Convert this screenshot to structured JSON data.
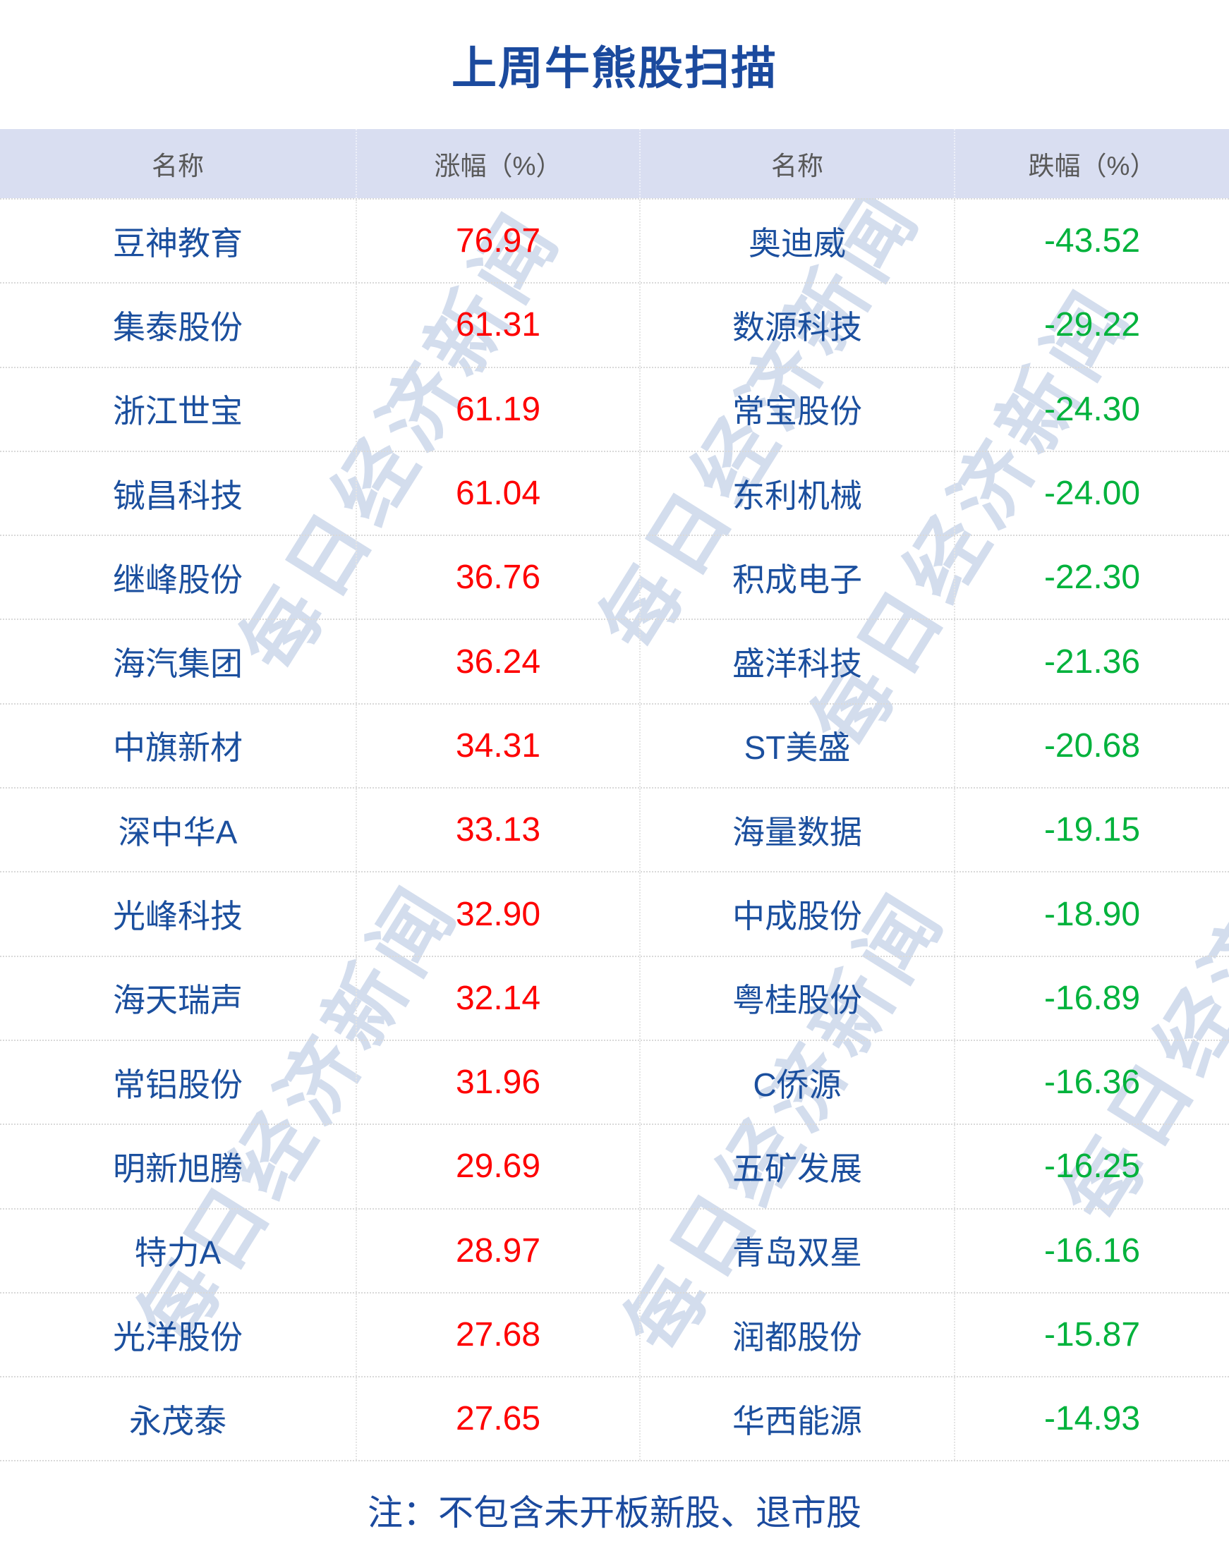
{
  "chart_data": {
    "type": "table",
    "title": "上周牛熊股扫描",
    "columns": [
      "名称",
      "涨幅（%）",
      "名称",
      "跌幅（%）"
    ],
    "rows": [
      {
        "gainer": "豆神教育",
        "gain_pct": "76.97",
        "loser": "奥迪威",
        "loss_pct": "-43.52"
      },
      {
        "gainer": "集泰股份",
        "gain_pct": "61.31",
        "loser": "数源科技",
        "loss_pct": "-29.22"
      },
      {
        "gainer": "浙江世宝",
        "gain_pct": "61.19",
        "loser": "常宝股份",
        "loss_pct": "-24.30"
      },
      {
        "gainer": "铖昌科技",
        "gain_pct": "61.04",
        "loser": "东利机械",
        "loss_pct": "-24.00"
      },
      {
        "gainer": "继峰股份",
        "gain_pct": "36.76",
        "loser": "积成电子",
        "loss_pct": "-22.30"
      },
      {
        "gainer": "海汽集团",
        "gain_pct": "36.24",
        "loser": "盛洋科技",
        "loss_pct": "-21.36"
      },
      {
        "gainer": "中旗新材",
        "gain_pct": "34.31",
        "loser": "ST美盛",
        "loss_pct": "-20.68"
      },
      {
        "gainer": "深中华A",
        "gain_pct": "33.13",
        "loser": "海量数据",
        "loss_pct": "-19.15"
      },
      {
        "gainer": "光峰科技",
        "gain_pct": "32.90",
        "loser": "中成股份",
        "loss_pct": "-18.90"
      },
      {
        "gainer": "海天瑞声",
        "gain_pct": "32.14",
        "loser": "粤桂股份",
        "loss_pct": "-16.89"
      },
      {
        "gainer": "常铝股份",
        "gain_pct": "31.96",
        "loser": "C侨源",
        "loss_pct": "-16.36"
      },
      {
        "gainer": "明新旭腾",
        "gain_pct": "29.69",
        "loser": "五矿发展",
        "loss_pct": "-16.25"
      },
      {
        "gainer": "特力A",
        "gain_pct": "28.97",
        "loser": "青岛双星",
        "loss_pct": "-16.16"
      },
      {
        "gainer": "光洋股份",
        "gain_pct": "27.68",
        "loser": "润都股份",
        "loss_pct": "-15.87"
      },
      {
        "gainer": "永茂泰",
        "gain_pct": "27.65",
        "loser": "华西能源",
        "loss_pct": "-14.93"
      }
    ],
    "footnote": "注：不包含未开板新股、退市股",
    "watermark_text": "每日经济新闻"
  },
  "colors": {
    "title_blue": "#1b4a9e",
    "name_blue": "#1b4f9e",
    "gain_red": "#fe0000",
    "loss_green": "#00b23c",
    "header_bg": "#d9def1",
    "header_text": "#595959",
    "row_divider": "#d9d9d9",
    "watermark": "#c9d5e9"
  }
}
